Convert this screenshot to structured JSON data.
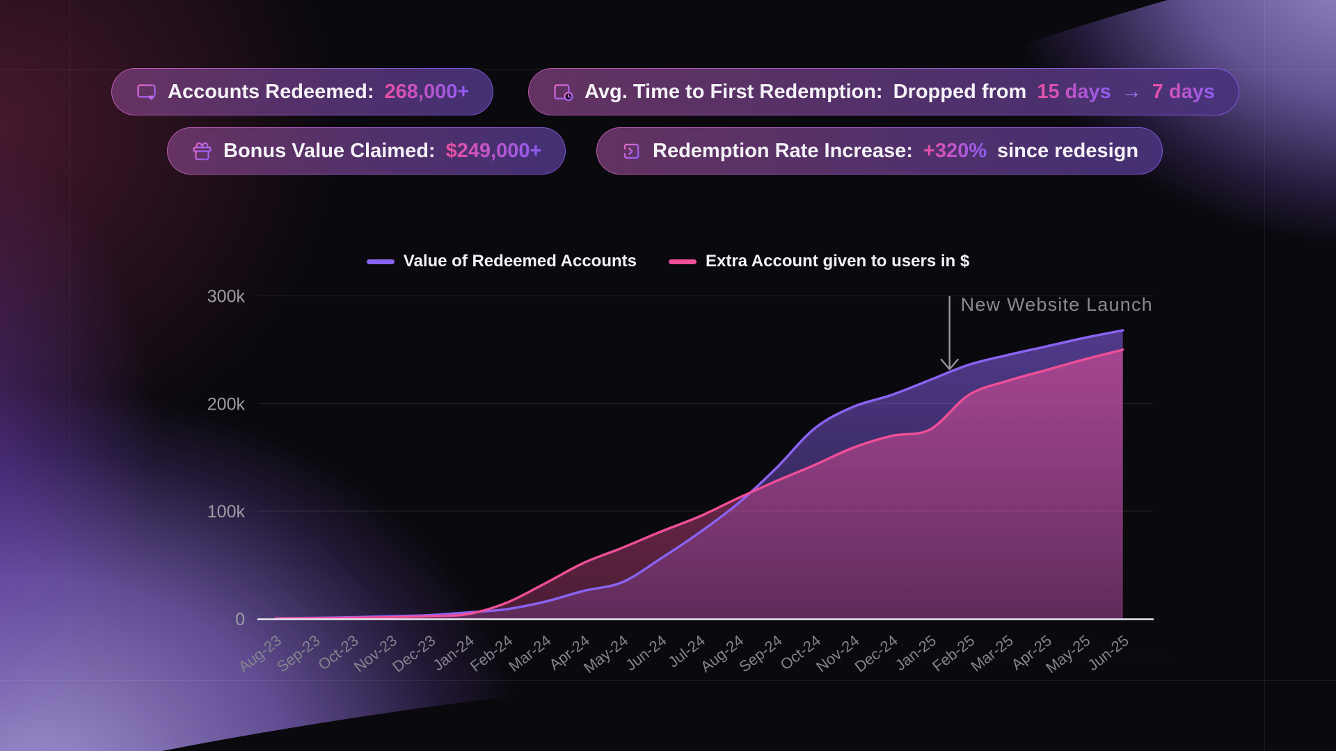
{
  "badges": [
    {
      "icon": "credit-card-heart-icon",
      "parts": [
        {
          "t": "Accounts Redeemed:",
          "s": "bw"
        },
        {
          "t": "268,000+",
          "s": "bgr"
        }
      ]
    },
    {
      "icon": "calendar-clock-icon",
      "parts": [
        {
          "t": "Avg. Time to First Redemption:",
          "s": "bw"
        },
        {
          "t": "Dropped from",
          "s": "bw"
        },
        {
          "t": "15 days",
          "s": "bgr"
        },
        {
          "t": "→",
          "s": "bar"
        },
        {
          "t": "7 days",
          "s": "bgr"
        }
      ]
    },
    {
      "icon": "gift-icon",
      "parts": [
        {
          "t": "Bonus Value Claimed:",
          "s": "bw"
        },
        {
          "t": "$249,000+",
          "s": "bgr"
        }
      ]
    },
    {
      "icon": "login-arrow-icon",
      "parts": [
        {
          "t": "Redemption Rate Increase:",
          "s": "bw"
        },
        {
          "t": "+320%",
          "s": "bgr"
        },
        {
          "t": "since redesign",
          "s": "bw"
        }
      ]
    }
  ],
  "chart_data": {
    "type": "area",
    "x": [
      "Aug-23",
      "Sep-23",
      "Oct-23",
      "Nov-23",
      "Dec-23",
      "Jan-24",
      "Feb-24",
      "Mar-24",
      "Apr-24",
      "May-24",
      "Jun-24",
      "Jul-24",
      "Aug-24",
      "Sep-24",
      "Oct-24",
      "Nov-24",
      "Dec-24",
      "Jan-25",
      "Feb-25",
      "Mar-25",
      "Apr-25",
      "May-25",
      "Jun-25"
    ],
    "series": [
      {
        "name": "Value of Redeemed Accounts",
        "color": "#8a63f2",
        "values": [
          500,
          1000,
          1500,
          2500,
          3500,
          6000,
          9000,
          16000,
          26000,
          34000,
          56000,
          80000,
          107000,
          140000,
          177000,
          197000,
          208000,
          222000,
          236000,
          245000,
          253000,
          261000,
          268000
        ]
      },
      {
        "name": "Extra Account given to users in $",
        "color": "#ee4f98",
        "values": [
          300,
          600,
          1000,
          1500,
          2500,
          4500,
          15000,
          33000,
          52000,
          66000,
          81000,
          95000,
          112000,
          128000,
          143000,
          159000,
          170000,
          176000,
          208000,
          221000,
          231000,
          241000,
          250000
        ]
      }
    ],
    "ylim": [
      0,
      300000
    ],
    "yticks": [
      {
        "value": 0,
        "label": "0"
      },
      {
        "value": 100000,
        "label": "100k"
      },
      {
        "value": 200000,
        "label": "200k"
      },
      {
        "value": 300000,
        "label": "300k"
      }
    ],
    "grid": "horizontal",
    "legend_position": "top",
    "annotation": {
      "text": "New Website Launch",
      "month_offset": 17.5
    }
  },
  "colors": {
    "accent_pink": "#ea4fa2",
    "accent_purple": "#8f5cf6",
    "axis_text": "#9e9ba5",
    "tick_text": "#86838d",
    "annotation_text": "#8b8893",
    "baseline": "#e8eaf2"
  }
}
